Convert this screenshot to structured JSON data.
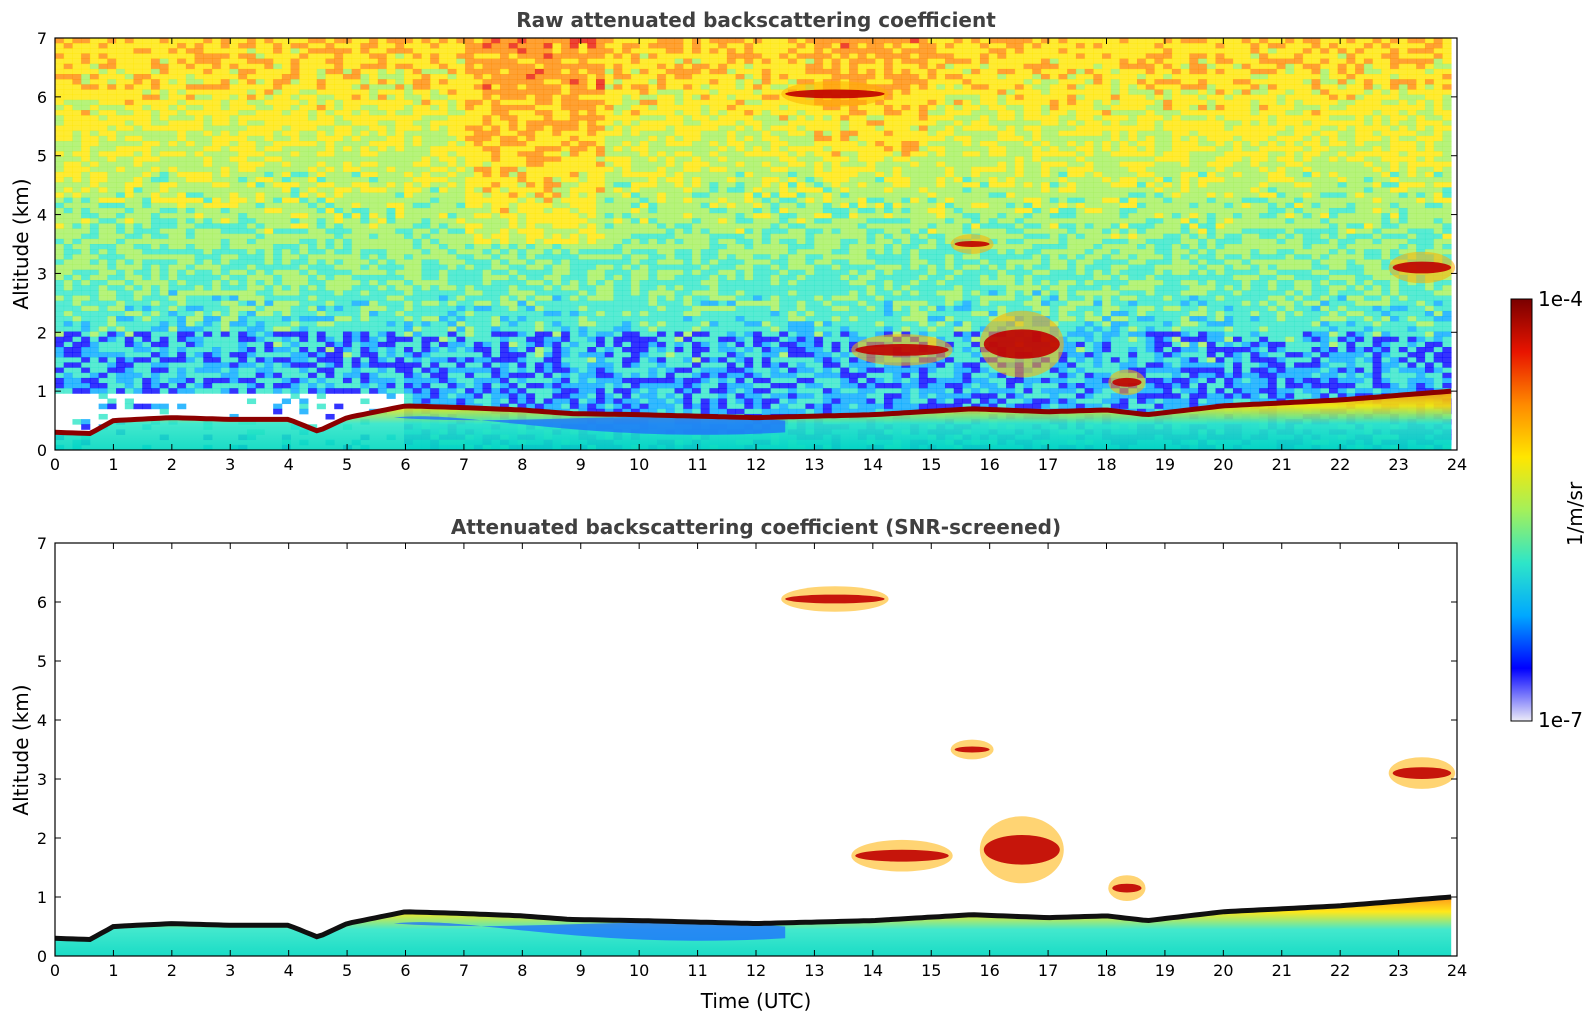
{
  "chart_data": [
    {
      "type": "heatmap",
      "title": "Raw attenuated backscattering coefficient",
      "xlabel": "",
      "ylabel": "Altitude (km)",
      "xlim": [
        0,
        24
      ],
      "ylim": [
        0,
        7
      ],
      "xticks": [
        "0",
        "1",
        "2",
        "3",
        "4",
        "5",
        "6",
        "7",
        "8",
        "9",
        "10",
        "11",
        "12",
        "13",
        "14",
        "15",
        "16",
        "17",
        "18",
        "19",
        "20",
        "21",
        "22",
        "23",
        "24"
      ],
      "yticks": [
        "0",
        "1",
        "2",
        "3",
        "4",
        "5",
        "6",
        "7"
      ],
      "noise_background": true,
      "boundary_layer_top": {
        "x": [
          0,
          0.6,
          1,
          2,
          3,
          4,
          4.5,
          5,
          6,
          7,
          8,
          8.8,
          10,
          12,
          14,
          15.7,
          17,
          18,
          18.7,
          20,
          22,
          23.9
        ],
        "y": [
          0.3,
          0.28,
          0.5,
          0.55,
          0.52,
          0.52,
          0.32,
          0.55,
          0.75,
          0.72,
          0.68,
          0.62,
          0.6,
          0.55,
          0.6,
          0.7,
          0.65,
          0.68,
          0.6,
          0.75,
          0.85,
          1.0
        ]
      },
      "cloud_features": [
        {
          "label": "cloud",
          "x": [
            12.5,
            14.2
          ],
          "y": [
            5.9,
            6.2
          ]
        },
        {
          "label": "cloud",
          "x": [
            15.4,
            16.0
          ],
          "y": [
            3.4,
            3.6
          ]
        },
        {
          "label": "cloud",
          "x": [
            13.7,
            15.3
          ],
          "y": [
            1.5,
            1.9
          ]
        },
        {
          "label": "cloud",
          "x": [
            15.9,
            17.2
          ],
          "y": [
            1.3,
            2.3
          ]
        },
        {
          "label": "cloud",
          "x": [
            18.1,
            18.6
          ],
          "y": [
            1.0,
            1.3
          ]
        },
        {
          "label": "cloud",
          "x": [
            22.9,
            23.9
          ],
          "y": [
            2.9,
            3.3
          ]
        }
      ]
    },
    {
      "type": "heatmap",
      "title": "Attenuated backscattering coefficient (SNR-screened)",
      "xlabel": "Time (UTC)",
      "ylabel": "Altitude (km)",
      "xlim": [
        0,
        24
      ],
      "ylim": [
        0,
        7
      ],
      "xticks": [
        "0",
        "1",
        "2",
        "3",
        "4",
        "5",
        "6",
        "7",
        "8",
        "9",
        "10",
        "11",
        "12",
        "13",
        "14",
        "15",
        "16",
        "17",
        "18",
        "19",
        "20",
        "21",
        "22",
        "23",
        "24"
      ],
      "yticks": [
        "0",
        "1",
        "2",
        "3",
        "4",
        "5",
        "6",
        "7"
      ],
      "noise_background": false,
      "boundary_layer_top": {
        "x": [
          0,
          0.6,
          1,
          2,
          3,
          4,
          4.5,
          5,
          6,
          7,
          8,
          8.8,
          10,
          12,
          14,
          15.7,
          17,
          18,
          18.7,
          20,
          22,
          23.9
        ],
        "y": [
          0.3,
          0.28,
          0.5,
          0.55,
          0.52,
          0.52,
          0.32,
          0.55,
          0.75,
          0.72,
          0.68,
          0.62,
          0.6,
          0.55,
          0.6,
          0.7,
          0.65,
          0.68,
          0.6,
          0.75,
          0.85,
          1.0
        ]
      },
      "cloud_features": [
        {
          "label": "cloud",
          "x": [
            12.5,
            14.2
          ],
          "y": [
            5.9,
            6.2
          ]
        },
        {
          "label": "cloud",
          "x": [
            15.4,
            16.0
          ],
          "y": [
            3.4,
            3.6
          ]
        },
        {
          "label": "cloud",
          "x": [
            13.7,
            15.3
          ],
          "y": [
            1.5,
            1.9
          ]
        },
        {
          "label": "cloud",
          "x": [
            15.9,
            17.2
          ],
          "y": [
            1.3,
            2.3
          ]
        },
        {
          "label": "cloud",
          "x": [
            18.1,
            18.6
          ],
          "y": [
            1.0,
            1.3
          ]
        },
        {
          "label": "cloud",
          "x": [
            22.9,
            23.9
          ],
          "y": [
            2.9,
            3.3
          ]
        }
      ]
    }
  ],
  "colorbar": {
    "max_label": "1e-4",
    "min_label": "1e-7",
    "unit_label": "1/m/sr",
    "colormap": "jet",
    "colors": [
      "#ecebf7",
      "#0000ff",
      "#00a8ff",
      "#2ee6c8",
      "#a4f05a",
      "#ffe600",
      "#ff8a00",
      "#e81400",
      "#7a0000"
    ]
  }
}
